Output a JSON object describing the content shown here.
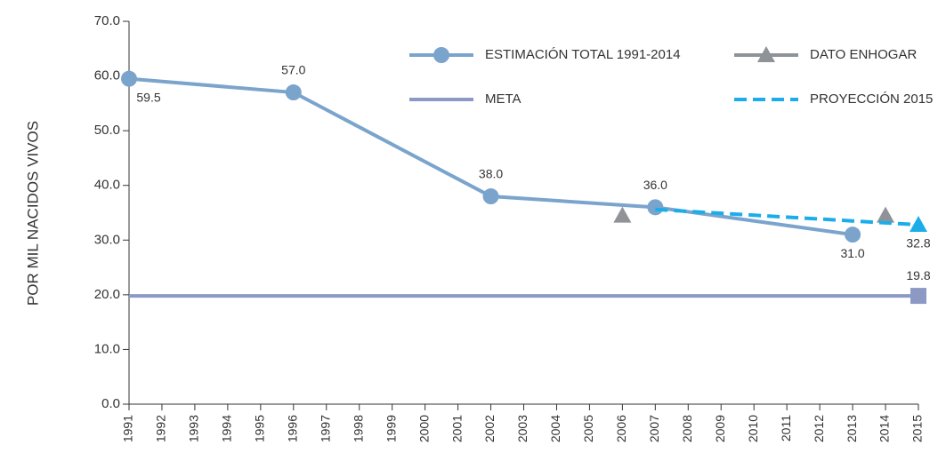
{
  "chart_data": {
    "type": "line",
    "y_label": "POR MIL NACIDOS VIVOS",
    "xlim": [
      1991,
      2015
    ],
    "xticks": [
      1991,
      1992,
      1993,
      1994,
      1995,
      1996,
      1997,
      1998,
      1999,
      2000,
      2001,
      2002,
      2003,
      2004,
      2005,
      2006,
      2007,
      2008,
      2009,
      2010,
      2011,
      2012,
      2013,
      2014,
      2015
    ],
    "ylim": [
      0,
      70
    ],
    "yticks": [
      {
        "value": 0,
        "label": "0.0"
      },
      {
        "value": 10,
        "label": "10.0"
      },
      {
        "value": 20,
        "label": "20.0"
      },
      {
        "value": 30,
        "label": "30.0"
      },
      {
        "value": 40,
        "label": "40.0"
      },
      {
        "value": 50,
        "label": "50.0"
      },
      {
        "value": 60,
        "label": "60.0"
      },
      {
        "value": 70,
        "label": "70.0"
      }
    ],
    "series": [
      {
        "name": "ESTIMACIÓN TOTAL 1991-2014",
        "color": "#7ba4cd",
        "marker": "circle",
        "dash": false,
        "line": true,
        "x": [
          1991,
          1996,
          2002,
          2007,
          2013
        ],
        "values": [
          59.5,
          57.0,
          38.0,
          36.0,
          31.0
        ],
        "value_labels": [
          "59.5",
          "57.0",
          "38.0",
          "36.0",
          "31.0"
        ]
      },
      {
        "name": "DATO ENHOGAR",
        "color": "#8f9398",
        "marker": "triangle",
        "dash": false,
        "line": false,
        "x": [
          2006,
          2014
        ],
        "values": [
          34.5,
          34.5
        ]
      },
      {
        "name": "META",
        "color": "#8c99c4",
        "marker": "square",
        "dash": false,
        "line": true,
        "x": [
          1991,
          2015
        ],
        "values": [
          19.8,
          19.8
        ],
        "value_labels": [
          null,
          "19.8"
        ]
      },
      {
        "name": "PROYECCIÓN 2015",
        "color": "#1badea",
        "marker": "triangle",
        "dash": true,
        "line": true,
        "x": [
          2007,
          2015
        ],
        "values": [
          35.6,
          32.8
        ],
        "value_labels": [
          null,
          "32.8"
        ]
      }
    ]
  }
}
